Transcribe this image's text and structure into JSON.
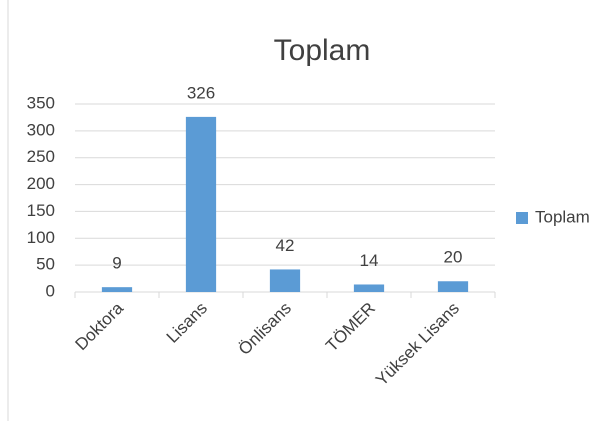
{
  "chart_data": {
    "type": "bar",
    "title": "Toplam",
    "categories": [
      "Doktora",
      "Lisans",
      "Önlisans",
      "TÖMER",
      "Yüksek Lisans"
    ],
    "series": [
      {
        "name": "Toplam",
        "color": "#5b9bd5",
        "values": [
          9,
          326,
          42,
          14,
          20
        ]
      }
    ],
    "ylim": [
      0,
      350
    ],
    "yticks": [
      0,
      50,
      100,
      150,
      200,
      250,
      300,
      350
    ],
    "grid": true,
    "legend": "right",
    "data_labels": true
  }
}
